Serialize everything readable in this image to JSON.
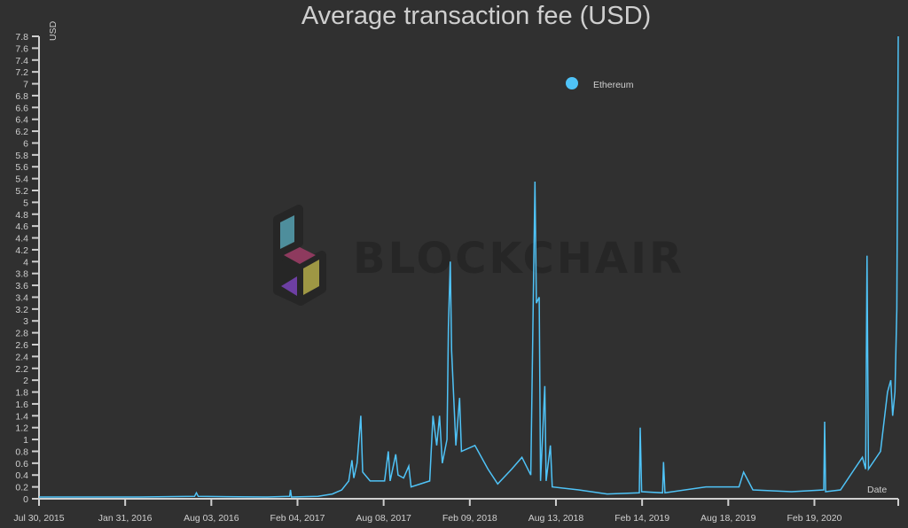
{
  "chart_data": {
    "type": "line",
    "title": "Average transaction fee (USD)",
    "ylabel": "USD",
    "xlabel": "Date",
    "ylim": [
      0,
      7.8
    ],
    "xlim": [
      "2015-07-30",
      "2020-08-17"
    ],
    "grid": false,
    "legend_position": "top-right",
    "x_ticks": [
      "Jul 30, 2015",
      "Jan 31, 2016",
      "Aug 03, 2016",
      "Feb 04, 2017",
      "Aug 08, 2017",
      "Feb 09, 2018",
      "Aug 13, 2018",
      "Feb 14, 2019",
      "Aug 18, 2019",
      "Feb 19, 2020"
    ],
    "x_tick_dates": [
      "2015-07-30",
      "2016-01-31",
      "2016-08-03",
      "2017-02-04",
      "2017-08-08",
      "2018-02-09",
      "2018-08-13",
      "2019-02-14",
      "2019-08-18",
      "2020-02-19"
    ],
    "y_ticks": [
      "0",
      "0.2",
      "0.4",
      "0.6",
      "0.8",
      "1",
      "1.2",
      "1.4",
      "1.6",
      "1.8",
      "2",
      "2.2",
      "2.4",
      "2.6",
      "2.8",
      "3",
      "3.2",
      "3.4",
      "3.6",
      "3.8",
      "4",
      "4.2",
      "4.4",
      "4.6",
      "4.8",
      "5",
      "5.2",
      "5.4",
      "5.6",
      "5.8",
      "6",
      "6.2",
      "6.4",
      "6.6",
      "6.8",
      "7",
      "7.2",
      "7.4",
      "7.6",
      "7.8"
    ],
    "series": [
      {
        "name": "Ethereum",
        "color": "#4fc3f7",
        "points": [
          [
            "2015-07-30",
            0.03
          ],
          [
            "2016-03-01",
            0.03
          ],
          [
            "2016-06-28",
            0.04
          ],
          [
            "2016-07-02",
            0.1
          ],
          [
            "2016-07-06",
            0.04
          ],
          [
            "2016-12-01",
            0.03
          ],
          [
            "2017-01-18",
            0.04
          ],
          [
            "2017-01-20",
            0.15
          ],
          [
            "2017-01-22",
            0.03
          ],
          [
            "2017-03-20",
            0.04
          ],
          [
            "2017-04-20",
            0.08
          ],
          [
            "2017-05-10",
            0.15
          ],
          [
            "2017-05-25",
            0.3
          ],
          [
            "2017-06-01",
            0.65
          ],
          [
            "2017-06-05",
            0.35
          ],
          [
            "2017-06-12",
            0.6
          ],
          [
            "2017-06-20",
            1.4
          ],
          [
            "2017-06-24",
            0.45
          ],
          [
            "2017-07-10",
            0.3
          ],
          [
            "2017-08-10",
            0.3
          ],
          [
            "2017-08-18",
            0.8
          ],
          [
            "2017-08-22",
            0.3
          ],
          [
            "2017-09-03",
            0.75
          ],
          [
            "2017-09-08",
            0.4
          ],
          [
            "2017-09-20",
            0.35
          ],
          [
            "2017-10-01",
            0.55
          ],
          [
            "2017-10-06",
            0.2
          ],
          [
            "2017-11-15",
            0.3
          ],
          [
            "2017-11-22",
            1.4
          ],
          [
            "2017-11-30",
            0.9
          ],
          [
            "2017-12-06",
            1.4
          ],
          [
            "2017-12-12",
            0.6
          ],
          [
            "2017-12-22",
            1.0
          ],
          [
            "2017-12-25",
            2.9
          ],
          [
            "2017-12-29",
            4.0
          ],
          [
            "2018-01-01",
            2.5
          ],
          [
            "2018-01-10",
            0.9
          ],
          [
            "2018-01-18",
            1.7
          ],
          [
            "2018-01-22",
            0.8
          ],
          [
            "2018-02-20",
            0.9
          ],
          [
            "2018-03-20",
            0.5
          ],
          [
            "2018-04-10",
            0.25
          ],
          [
            "2018-05-10",
            0.5
          ],
          [
            "2018-06-01",
            0.7
          ],
          [
            "2018-06-20",
            0.4
          ],
          [
            "2018-06-29",
            5.35
          ],
          [
            "2018-07-02",
            3.3
          ],
          [
            "2018-07-08",
            3.4
          ],
          [
            "2018-07-11",
            0.3
          ],
          [
            "2018-07-20",
            1.9
          ],
          [
            "2018-07-23",
            0.3
          ],
          [
            "2018-08-01",
            0.9
          ],
          [
            "2018-08-05",
            0.2
          ],
          [
            "2018-10-01",
            0.15
          ],
          [
            "2018-12-01",
            0.08
          ],
          [
            "2019-02-08",
            0.1
          ],
          [
            "2019-02-10",
            1.2
          ],
          [
            "2019-02-13",
            0.12
          ],
          [
            "2019-03-30",
            0.1
          ],
          [
            "2019-04-01",
            0.62
          ],
          [
            "2019-04-04",
            0.1
          ],
          [
            "2019-07-01",
            0.2
          ],
          [
            "2019-09-10",
            0.2
          ],
          [
            "2019-09-20",
            0.45
          ],
          [
            "2019-10-10",
            0.15
          ],
          [
            "2020-01-01",
            0.12
          ],
          [
            "2020-03-10",
            0.15
          ],
          [
            "2020-03-12",
            1.3
          ],
          [
            "2020-03-14",
            0.12
          ],
          [
            "2020-04-15",
            0.15
          ],
          [
            "2020-05-15",
            0.5
          ],
          [
            "2020-06-01",
            0.7
          ],
          [
            "2020-06-08",
            0.5
          ],
          [
            "2020-06-11",
            4.1
          ],
          [
            "2020-06-14",
            0.5
          ],
          [
            "2020-07-10",
            0.8
          ],
          [
            "2020-07-25",
            1.8
          ],
          [
            "2020-08-01",
            2.0
          ],
          [
            "2020-08-05",
            1.4
          ],
          [
            "2020-08-10",
            1.8
          ],
          [
            "2020-08-14",
            3.2
          ],
          [
            "2020-08-17",
            7.8
          ]
        ]
      }
    ]
  },
  "watermark": "BLOCKCHAIR"
}
